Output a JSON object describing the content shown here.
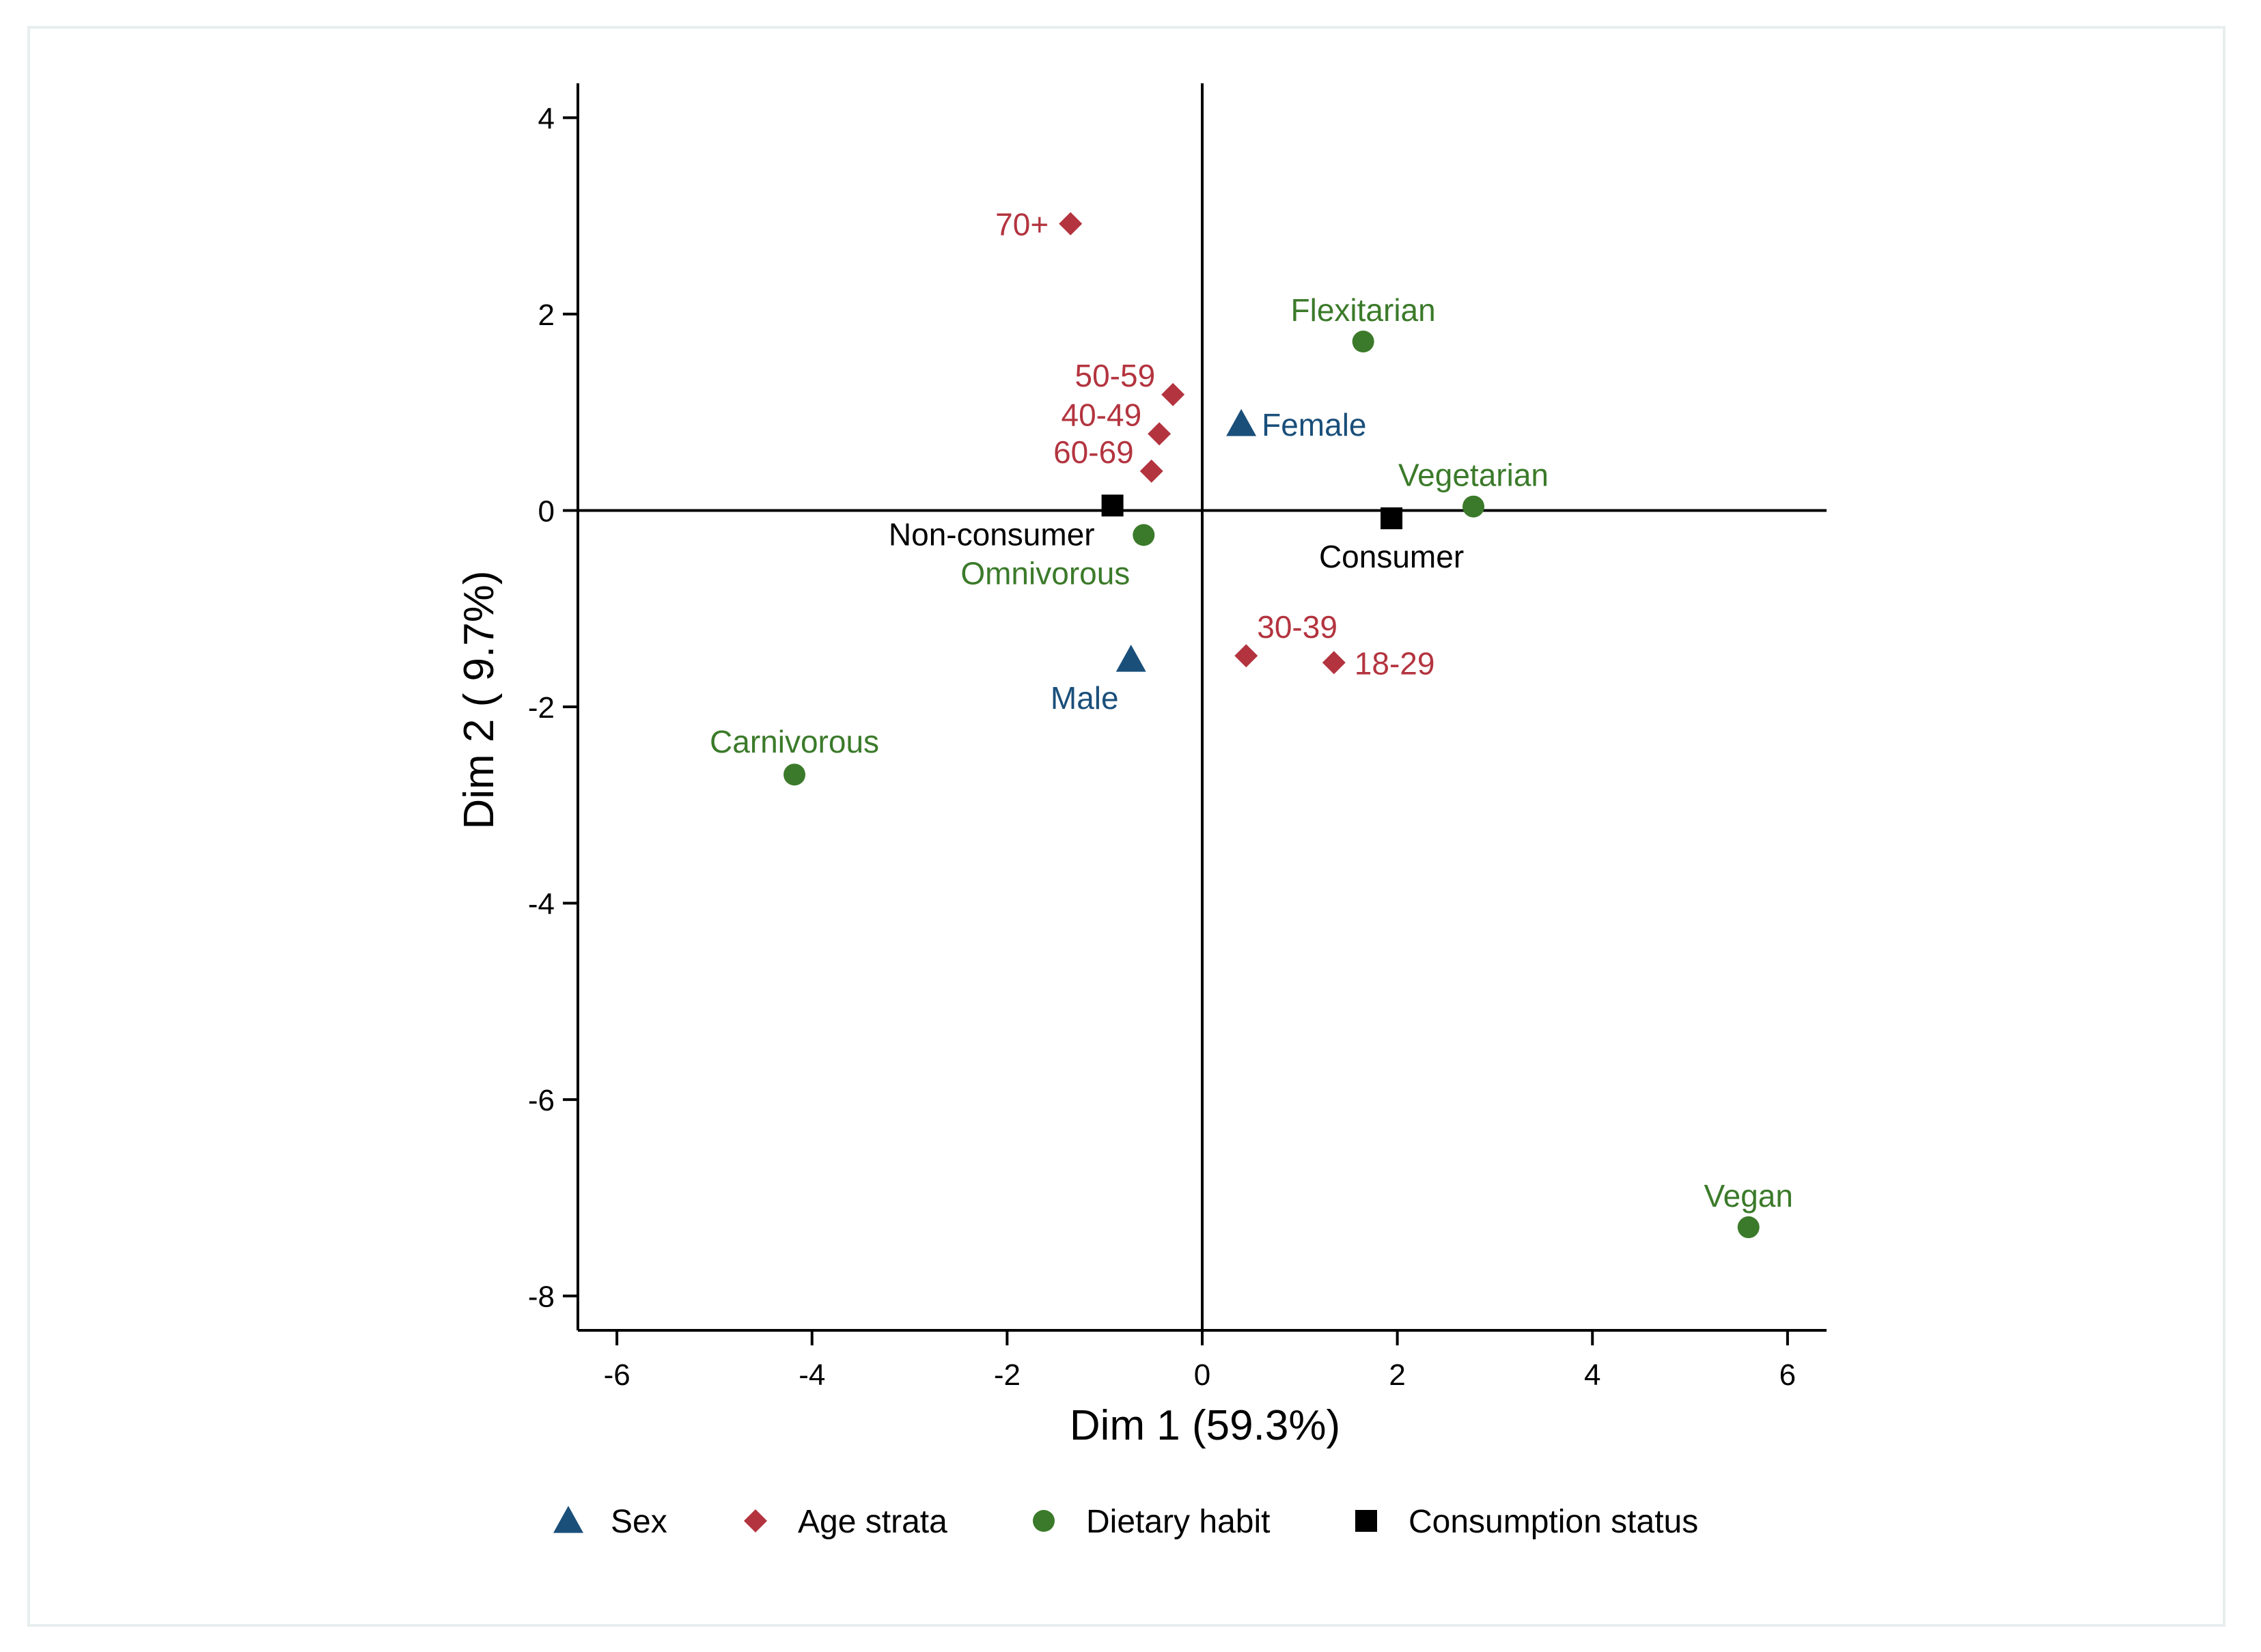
{
  "chart_data": {
    "type": "scatter",
    "xlabel": "Dim 1 (59.3%)",
    "ylabel": "Dim 2 ( 9.7%)",
    "xlim": [
      -6.4,
      6.4
    ],
    "ylim": [
      -8.35,
      4.35
    ],
    "xticks": [
      -6,
      -4,
      -2,
      0,
      2,
      4,
      6
    ],
    "yticks": [
      4,
      2,
      0,
      -2,
      -4,
      -6,
      -8
    ],
    "reference_lines": {
      "x": 0,
      "y": 0
    },
    "grid": false,
    "legend_position": "bottom",
    "series": [
      {
        "name": "Sex",
        "marker": "triangle",
        "color": "#1a4f7a",
        "points": [
          {
            "label": "Female",
            "x": 0.4,
            "y": 0.88
          },
          {
            "label": "Male",
            "x": -0.73,
            "y": -1.52
          }
        ]
      },
      {
        "name": "Age strata",
        "marker": "diamond",
        "color": "#b3343f",
        "points": [
          {
            "label": "70+",
            "x": -1.35,
            "y": 2.92
          },
          {
            "label": "50-59",
            "x": -0.3,
            "y": 1.18
          },
          {
            "label": "40-49",
            "x": -0.44,
            "y": 0.78
          },
          {
            "label": "60-69",
            "x": -0.52,
            "y": 0.4
          },
          {
            "label": "30-39",
            "x": 0.45,
            "y": -1.48
          },
          {
            "label": "18-29",
            "x": 1.35,
            "y": -1.55
          }
        ]
      },
      {
        "name": "Dietary habit",
        "marker": "circle",
        "color": "#3b7a2a",
        "points": [
          {
            "label": "Flexitarian",
            "x": 1.65,
            "y": 1.72
          },
          {
            "label": "Vegetarian",
            "x": 2.78,
            "y": 0.04
          },
          {
            "label": "Omnivorous",
            "x": -0.6,
            "y": -0.25
          },
          {
            "label": "Carnivorous",
            "x": -4.18,
            "y": -2.69
          },
          {
            "label": "Vegan",
            "x": 5.6,
            "y": -7.3
          }
        ]
      },
      {
        "name": "Consumption status",
        "marker": "square",
        "color": "#000000",
        "points": [
          {
            "label": "Non-consumer",
            "x": -0.92,
            "y": 0.05
          },
          {
            "label": "Consumer",
            "x": 1.94,
            "y": -0.08
          }
        ]
      }
    ]
  }
}
